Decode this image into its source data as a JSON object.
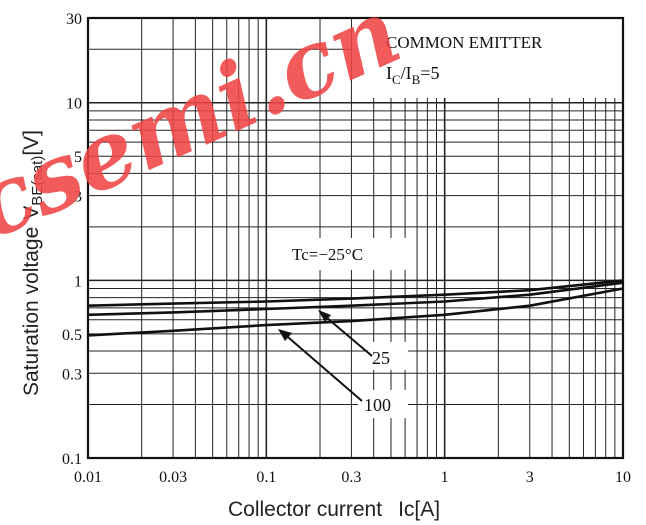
{
  "chart_data": {
    "type": "line",
    "xscale": "log",
    "yscale": "log",
    "xlim": [
      0.01,
      10
    ],
    "ylim": [
      0.1,
      30
    ],
    "grid": true,
    "xlabel": "Collector current",
    "xlabel_unit": "Ic[A]",
    "ylabel": "Saturation voltage",
    "ylabel_symbol": "V",
    "ylabel_subscript": "BE(sat)",
    "ylabel_unit": "[V]",
    "x_ticks": [
      {
        "value": 0.01,
        "label": "0.01"
      },
      {
        "value": 0.03,
        "label": "0.03"
      },
      {
        "value": 0.1,
        "label": "0.1"
      },
      {
        "value": 0.3,
        "label": "0.3"
      },
      {
        "value": 1,
        "label": "1"
      },
      {
        "value": 3,
        "label": "3"
      },
      {
        "value": 10,
        "label": "10"
      }
    ],
    "y_ticks": [
      {
        "value": 0.1,
        "label": "0.1"
      },
      {
        "value": 0.3,
        "label": "0.3"
      },
      {
        "value": 0.5,
        "label": "0.5"
      },
      {
        "value": 1,
        "label": "1"
      },
      {
        "value": 3,
        "label": "3"
      },
      {
        "value": 5,
        "label": "5"
      },
      {
        "value": 10,
        "label": "10"
      },
      {
        "value": 30,
        "label": "30"
      }
    ],
    "conditions": {
      "line1": "COMMON EMITTER",
      "line2_main": "I",
      "line2_sub1": "C",
      "line2_slash": "/I",
      "line2_sub2": "B",
      "line2_rest": "=5"
    },
    "series": [
      {
        "name": "Tc=-25°C",
        "x": [
          0.01,
          0.03,
          0.1,
          0.3,
          1,
          3,
          10
        ],
        "y": [
          0.72,
          0.74,
          0.76,
          0.79,
          0.83,
          0.88,
          1.0
        ]
      },
      {
        "name": "25",
        "x": [
          0.01,
          0.03,
          0.1,
          0.3,
          1,
          3,
          10
        ],
        "y": [
          0.64,
          0.66,
          0.69,
          0.72,
          0.76,
          0.83,
          0.97
        ]
      },
      {
        "name": "100",
        "x": [
          0.01,
          0.03,
          0.1,
          0.3,
          1,
          3,
          10
        ],
        "y": [
          0.49,
          0.52,
          0.56,
          0.59,
          0.64,
          0.72,
          0.9
        ]
      }
    ],
    "series_labels": {
      "cold": "Tc=−25°C",
      "room": "25",
      "hot": "100"
    }
  },
  "watermark": {
    "text": "csemi.cn",
    "color": "#f04545"
  }
}
